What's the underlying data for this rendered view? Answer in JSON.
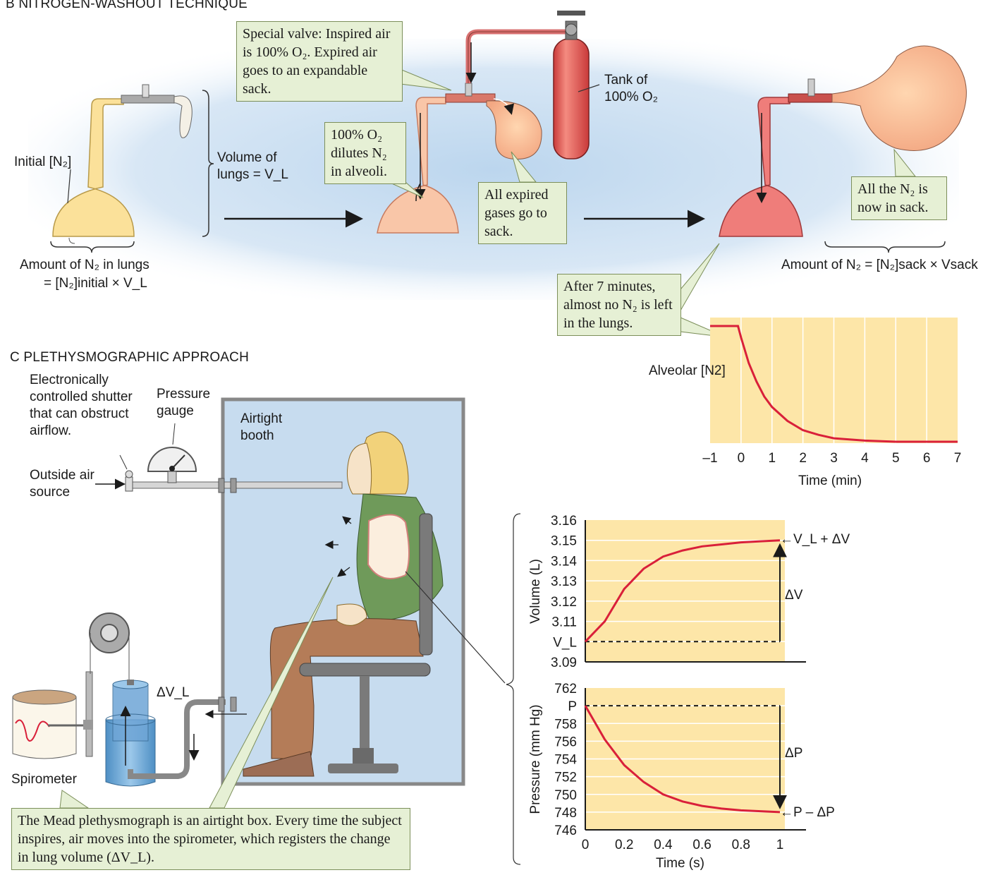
{
  "panelB": {
    "title": "B   NITROGEN-WASHOUT TECHNIQUE",
    "callout_valve": "Special valve: Inspired air is 100% O₂. Expired air goes to an expandable sack.",
    "tank_label": "Tank of 100% O₂",
    "initial_n2": "Initial [N₂]",
    "volume_of_lungs": "Volume of lungs = V_L",
    "callout_dilutes": "100% O₂ dilutes N₂ in alveoli.",
    "callout_expired": "All expired gases go to sack.",
    "callout_all_n2": "All the N₂ is now in sack.",
    "amount_lungs_line1": "Amount of N₂ in lungs",
    "amount_lungs_line2": "= [N₂]initial × V_L",
    "amount_sack": "Amount of N₂ = [N₂]sack × Vsack",
    "callout_7min": "After 7 minutes, almost no N₂ is left in the lungs."
  },
  "panelC": {
    "title": "C   PLETHYSMOGRAPHIC APPROACH",
    "shutter_label": "Electronically controlled shutter that can obstruct airflow.",
    "pressure_gauge": "Pressure gauge",
    "airtight_booth": "Airtight booth",
    "outside_air": "Outside air source",
    "delta_vl": "ΔV_L",
    "spirometer": "Spirometer",
    "callout_mead": "The Mead plethysmograph is an airtight box. Every time the subject inspires, air moves into the spirometer, which registers the change in lung volume (ΔV_L)."
  },
  "chart_data": [
    {
      "type": "line",
      "title": "",
      "ylabel": "Alveolar [N2]",
      "xlabel": "Time (min)",
      "xlim": [
        -1,
        7
      ],
      "xticks": [
        "–1",
        "0",
        "1",
        "2",
        "3",
        "4",
        "5",
        "6",
        "7"
      ],
      "x": [
        -1,
        -0.1,
        0,
        0.25,
        0.5,
        0.75,
        1,
        1.5,
        2,
        2.5,
        3,
        4,
        5,
        6,
        7
      ],
      "y": [
        1.0,
        1.0,
        0.9,
        0.68,
        0.52,
        0.39,
        0.3,
        0.18,
        0.1,
        0.06,
        0.03,
        0.01,
        0.0,
        0.0,
        0.0
      ],
      "grid": true,
      "color": "#d9203a"
    },
    {
      "type": "line",
      "title": "",
      "ylabel": "Volume (L)",
      "xlabel": "",
      "ylim": [
        3.09,
        3.16
      ],
      "yticks": [
        "3.16",
        "3.15",
        "3.14",
        "3.13",
        "3.12",
        "3.11",
        "V_L",
        "3.09"
      ],
      "x": [
        0,
        0.1,
        0.2,
        0.3,
        0.4,
        0.5,
        0.6,
        0.7,
        0.8,
        0.9,
        1.0
      ],
      "y": [
        3.1,
        3.11,
        3.126,
        3.136,
        3.142,
        3.145,
        3.147,
        3.148,
        3.149,
        3.1495,
        3.15
      ],
      "annotations": [
        "←V_L + ΔV",
        "ΔV"
      ],
      "color": "#d9203a"
    },
    {
      "type": "line",
      "title": "",
      "ylabel": "Pressure (mm Hg)",
      "xlabel": "Time (s)",
      "ylim": [
        746,
        762
      ],
      "xlim": [
        0,
        1
      ],
      "yticks": [
        "762",
        "P",
        "758",
        "756",
        "754",
        "752",
        "750",
        "748",
        "746"
      ],
      "xticks": [
        "0",
        "0.2",
        "0.4",
        "0.6",
        "0.8",
        "1"
      ],
      "x": [
        0,
        0.1,
        0.2,
        0.3,
        0.4,
        0.5,
        0.6,
        0.7,
        0.8,
        0.9,
        1.0
      ],
      "y": [
        760,
        756.2,
        753.3,
        751.4,
        750.0,
        749.2,
        748.7,
        748.4,
        748.2,
        748.1,
        748.0
      ],
      "annotations": [
        "←P – ΔP",
        "ΔP"
      ],
      "color": "#d9203a"
    }
  ]
}
